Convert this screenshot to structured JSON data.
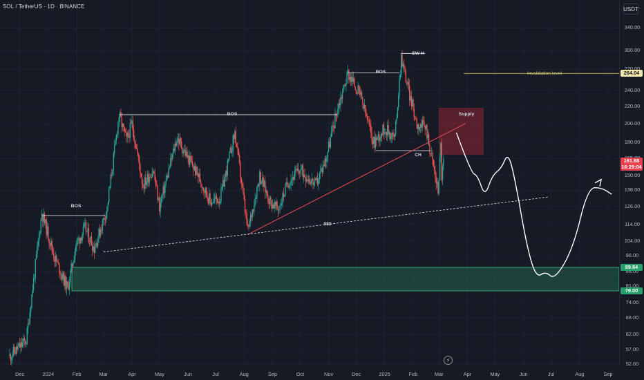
{
  "header": {
    "symbol": "SOL / TetherUS · 1D · BINANCE",
    "currency": "USDT"
  },
  "price_axis": {
    "ticks": [
      "340.00",
      "300.00",
      "270.00",
      "240.00",
      "220.00",
      "200.00",
      "180.00",
      "165.00",
      "150.00",
      "138.00",
      "126.00",
      "114.00",
      "104.00",
      "96.00",
      "88.00",
      "81.00",
      "74.00",
      "68.00",
      "62.00",
      "57.00",
      "52.60"
    ],
    "invalidation_tag": "264.04",
    "last_price": "161.88",
    "countdown": "16:29:04",
    "zone_top_tag": "89.84",
    "zone_bottom_tag": "79.00"
  },
  "time_axis": {
    "ticks": [
      "Dec",
      "2024",
      "Feb",
      "Mar",
      "Apr",
      "May",
      "Jun",
      "Jul",
      "Aug",
      "Sep",
      "Oct",
      "Nov",
      "Dec",
      "2025",
      "Feb",
      "Mar",
      "Apr",
      "May",
      "Jun",
      "Jul",
      "Aug",
      "Sep"
    ]
  },
  "annotations": {
    "bos_1": "BOS",
    "bos_2": "BOS",
    "bos_3": "BOS",
    "swing_high": "SW H",
    "change": "CH",
    "supply": "Supply",
    "liquidity": "$$$",
    "invalidation": "invalidation level"
  },
  "colors": {
    "up": "#26a69a",
    "down": "#ef5350",
    "background": "#161a25",
    "supply": "#e8414f",
    "demand": "#27a06b",
    "invalidation": "#d4c24a"
  },
  "icons": {
    "replay": "lightning-icon"
  },
  "chart_data": {
    "type": "candlestick",
    "symbol": "SOL / TetherUS",
    "interval": "1D",
    "exchange": "BINANCE",
    "scale": "log",
    "y_range": [
      52,
      400
    ],
    "x_range": [
      "2023-11-20",
      "2025-09-10"
    ],
    "pivots": [
      [
        "2023-11-20",
        55
      ],
      [
        "2023-12-08",
        60
      ],
      [
        "2023-12-25",
        122
      ],
      [
        "2024-01-08",
        95
      ],
      [
        "2024-01-22",
        80
      ],
      [
        "2024-01-31",
        102
      ],
      [
        "2024-02-10",
        112
      ],
      [
        "2024-02-20",
        100
      ],
      [
        "2024-03-05",
        125
      ],
      [
        "2024-03-18",
        210
      ],
      [
        "2024-03-26",
        182
      ],
      [
        "2024-04-01",
        200
      ],
      [
        "2024-04-13",
        142
      ],
      [
        "2024-04-24",
        155
      ],
      [
        "2024-05-01",
        126
      ],
      [
        "2024-05-20",
        185
      ],
      [
        "2024-06-01",
        165
      ],
      [
        "2024-06-12",
        150
      ],
      [
        "2024-06-25",
        130
      ],
      [
        "2024-07-06",
        132
      ],
      [
        "2024-07-22",
        190
      ],
      [
        "2024-08-05",
        110
      ],
      [
        "2024-08-18",
        150
      ],
      [
        "2024-08-29",
        130
      ],
      [
        "2024-09-07",
        124
      ],
      [
        "2024-09-18",
        145
      ],
      [
        "2024-10-01",
        155
      ],
      [
        "2024-10-18",
        142
      ],
      [
        "2024-10-29",
        165
      ],
      [
        "2024-11-10",
        215
      ],
      [
        "2024-11-22",
        265
      ],
      [
        "2024-12-05",
        235
      ],
      [
        "2024-12-20",
        180
      ],
      [
        "2025-01-01",
        195
      ],
      [
        "2025-01-12",
        185
      ],
      [
        "2025-01-19",
        290
      ],
      [
        "2025-01-28",
        235
      ],
      [
        "2025-02-05",
        200
      ],
      [
        "2025-02-15",
        195
      ],
      [
        "2025-02-28",
        138
      ],
      [
        "2025-03-03",
        178
      ],
      [
        "2025-03-04",
        150
      ],
      [
        "2025-03-06",
        161.88
      ]
    ],
    "levels": {
      "invalidation_level": 264.04,
      "bos": [
        120,
        210,
        265
      ],
      "swing_high": 295,
      "change_of_character": 172,
      "supply_zone": [
        172,
        218
      ],
      "demand_zone": [
        79.0,
        89.84
      ],
      "last_close": 161.88
    },
    "trendlines": {
      "support": [
        [
          "2024-08-05",
          108
        ],
        [
          "2025-03-30",
          200
        ]
      ],
      "liquidity": [
        [
          "2024-03-01",
          98
        ],
        [
          "2025-06-28",
          133
        ]
      ]
    },
    "projection": [
      [
        "2025-03-20",
        190
      ],
      [
        "2025-04-05",
        152
      ],
      [
        "2025-04-12",
        150
      ],
      [
        "2025-04-20",
        133
      ],
      [
        "2025-04-28",
        150
      ],
      [
        "2025-05-08",
        156
      ],
      [
        "2025-05-15",
        170
      ],
      [
        "2025-05-22",
        150
      ],
      [
        "2025-06-05",
        100
      ],
      [
        "2025-06-15",
        85
      ],
      [
        "2025-06-25",
        88
      ],
      [
        "2025-07-05",
        84
      ],
      [
        "2025-07-25",
        100
      ],
      [
        "2025-08-10",
        140
      ],
      [
        "2025-08-25",
        140
      ],
      [
        "2025-09-05",
        135
      ]
    ]
  }
}
